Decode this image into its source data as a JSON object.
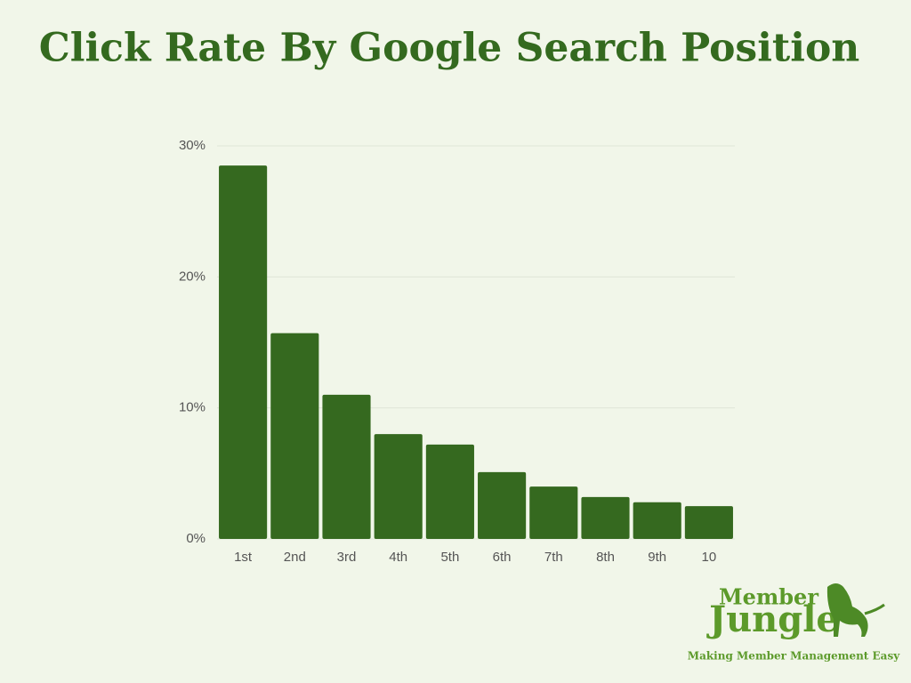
{
  "chart_data": {
    "type": "bar",
    "title": "Click Rate By Google Search Position",
    "categories": [
      "1st",
      "2nd",
      "3rd",
      "4th",
      "5th",
      "6th",
      "7th",
      "8th",
      "9th",
      "10"
    ],
    "values": [
      28.5,
      15.7,
      11.0,
      8.0,
      7.2,
      5.1,
      4.0,
      3.2,
      2.8,
      2.5
    ],
    "color": "#35691f",
    "ylim": [
      0,
      30
    ],
    "yticks": [
      {
        "value": 0,
        "label": "0%"
      },
      {
        "value": 10,
        "label": "10%"
      },
      {
        "value": 20,
        "label": "20%"
      },
      {
        "value": 30,
        "label": "30%"
      }
    ],
    "grid": true
  },
  "logo": {
    "line1": "Member",
    "line2": "Jungle",
    "tagline": "Making Member Management Easy"
  }
}
